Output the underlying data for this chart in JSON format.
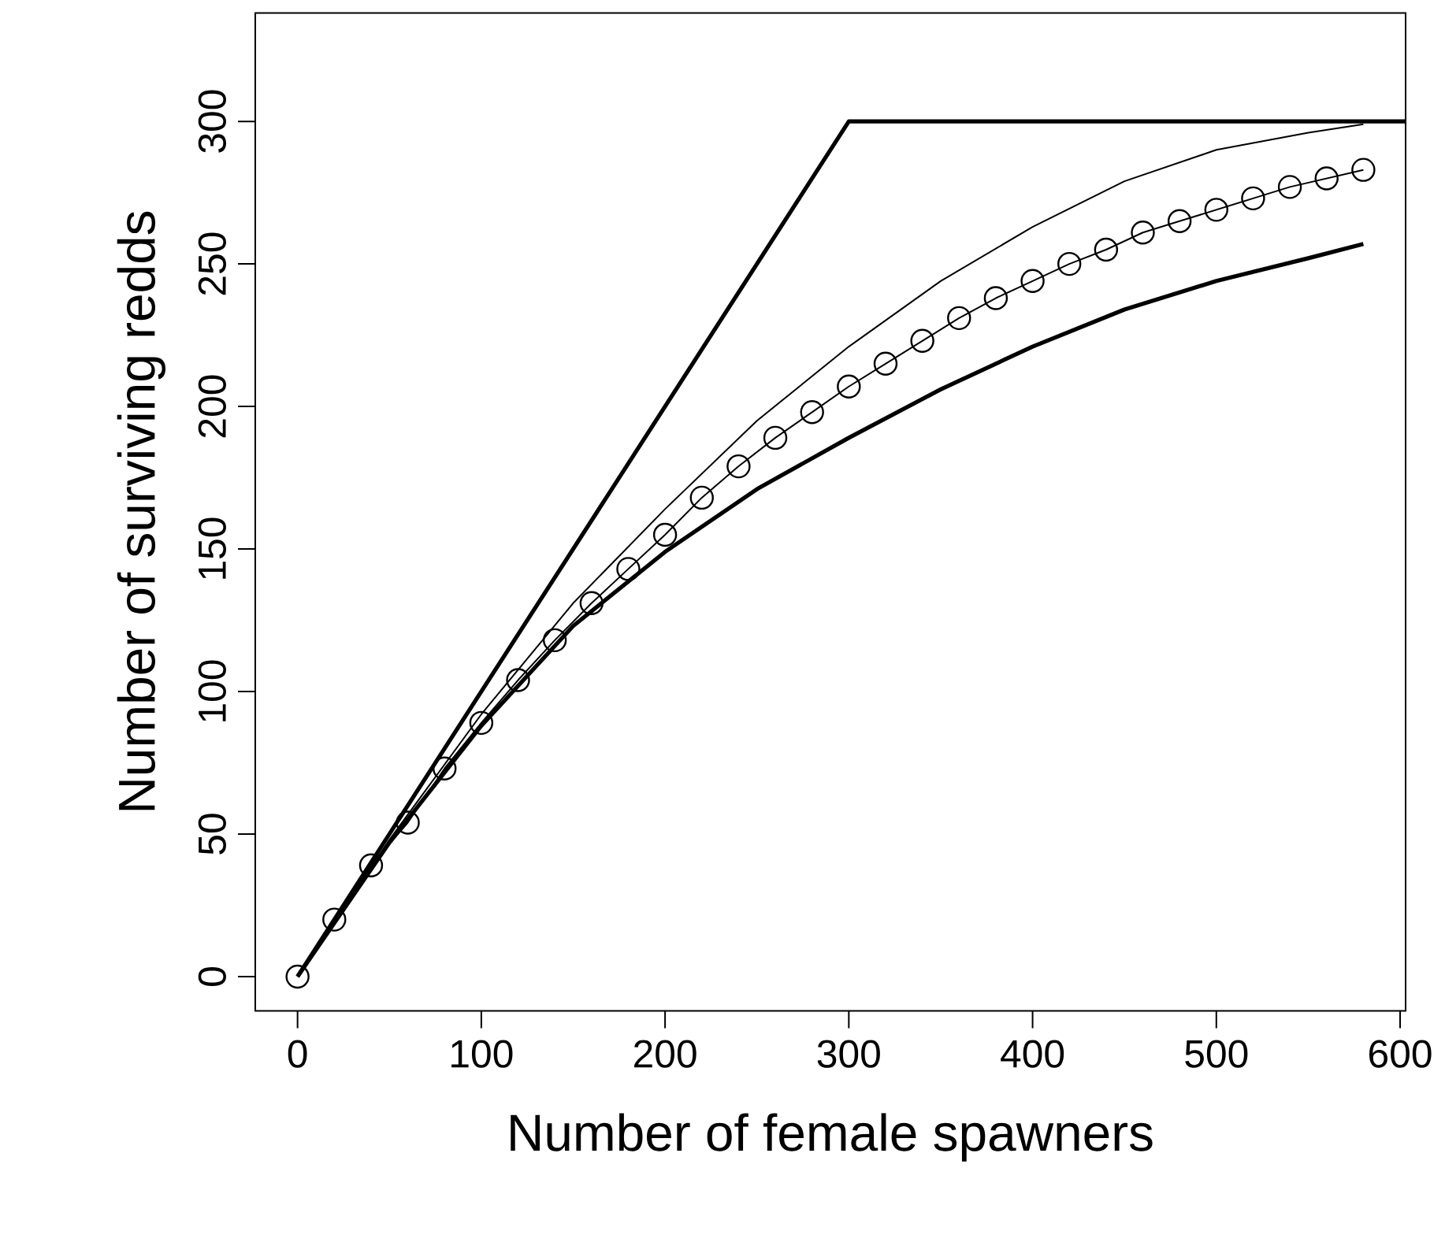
{
  "chart_data": {
    "type": "line",
    "xlabel": "Number of female spawners",
    "ylabel": "Number of surviving redds",
    "xlim": [
      -23,
      603
    ],
    "ylim": [
      -12,
      338
    ],
    "xticks": [
      0,
      100,
      200,
      300,
      400,
      500,
      600
    ],
    "yticks": [
      0,
      50,
      100,
      150,
      200,
      250,
      300
    ],
    "series": [
      {
        "color": "#000000",
        "marker": "none",
        "x": [
          0,
          300,
          603
        ],
        "values": [
          0,
          300,
          300
        ]
      },
      {
        "color": "#000000",
        "marker": "none",
        "x": [
          0,
          50,
          100,
          150,
          200,
          250,
          300,
          350,
          400,
          450,
          500,
          550,
          580
        ],
        "values": [
          0,
          47,
          88,
          123,
          149,
          171,
          189,
          206,
          221,
          234,
          244,
          252,
          257
        ]
      },
      {
        "color": "#000000",
        "marker": "none",
        "x": [
          0,
          50,
          100,
          150,
          200,
          250,
          300,
          350,
          400,
          450,
          500,
          550,
          580
        ],
        "values": [
          0,
          48,
          92,
          131,
          164,
          195,
          221,
          244,
          263,
          279,
          290,
          296,
          299
        ]
      },
      {
        "color": "#000000",
        "marker": "circle",
        "x": [
          0,
          20,
          40,
          60,
          80,
          100,
          120,
          140,
          160,
          180,
          200,
          220,
          240,
          260,
          280,
          300,
          320,
          340,
          360,
          380,
          400,
          420,
          440,
          460,
          480,
          500,
          520,
          540,
          560,
          580
        ],
        "values": [
          0,
          20,
          39,
          54,
          73,
          89,
          104,
          118,
          131,
          143,
          155,
          168,
          179,
          189,
          198,
          207,
          215,
          223,
          231,
          238,
          244,
          250,
          255,
          261,
          265,
          269,
          273,
          277,
          280,
          283
        ]
      }
    ]
  }
}
